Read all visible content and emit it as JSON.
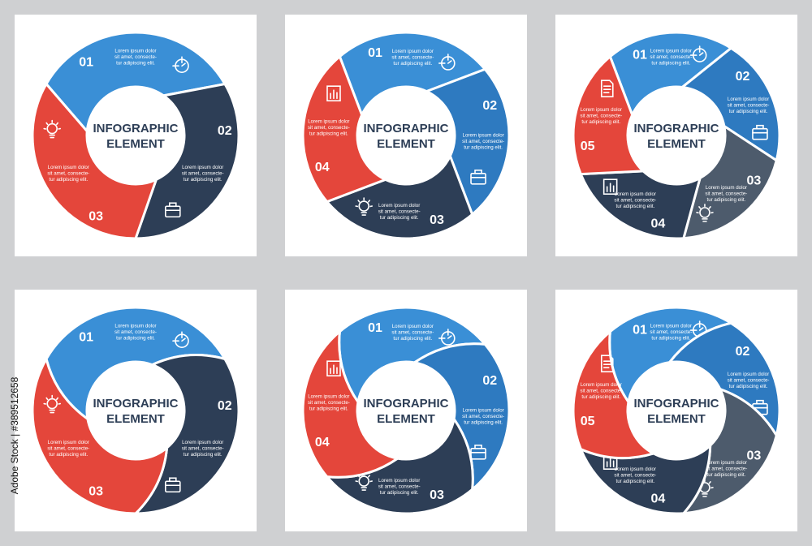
{
  "colors": {
    "blue_light": "#3a8fd6",
    "blue_mid": "#2e7ac0",
    "navy": "#2d3e56",
    "slate": "#4d5b6c",
    "red": "#e4463b",
    "background": "#cfd0d2"
  },
  "center_title": [
    "INFOGRAPHIC",
    "ELEMENT"
  ],
  "lorem": [
    "Lorem ipsum dolor",
    "sit amet, consecte-",
    "tur adipiscing elit."
  ],
  "watermark": "Adobe Stock | #389512658",
  "panels": [
    {
      "id": "p1",
      "segments": [
        {
          "num": "01",
          "color": "#3a8fd6",
          "icon": "target-icon"
        },
        {
          "num": "02",
          "color": "#2d3e56",
          "icon": "briefcase-icon"
        },
        {
          "num": "03",
          "color": "#e4463b",
          "icon": "lightbulb-icon"
        }
      ]
    },
    {
      "id": "p2",
      "segments": [
        {
          "num": "01",
          "color": "#3a8fd6",
          "icon": "target-icon"
        },
        {
          "num": "02",
          "color": "#2e7ac0",
          "icon": "briefcase-icon"
        },
        {
          "num": "03",
          "color": "#2d3e56",
          "icon": "lightbulb-icon"
        },
        {
          "num": "04",
          "color": "#e4463b",
          "icon": "bar-chart-icon"
        }
      ]
    },
    {
      "id": "p3",
      "segments": [
        {
          "num": "01",
          "color": "#3a8fd6",
          "icon": "target-icon"
        },
        {
          "num": "02",
          "color": "#2e7ac0",
          "icon": "briefcase-icon"
        },
        {
          "num": "03",
          "color": "#4d5b6c",
          "icon": "lightbulb-icon"
        },
        {
          "num": "04",
          "color": "#2d3e56",
          "icon": "bar-chart-icon"
        },
        {
          "num": "05",
          "color": "#e4463b",
          "icon": "document-icon"
        }
      ]
    },
    {
      "id": "p4",
      "segments": [
        {
          "num": "01",
          "color": "#3a8fd6",
          "icon": "target-icon"
        },
        {
          "num": "02",
          "color": "#2d3e56",
          "icon": "briefcase-icon"
        },
        {
          "num": "03",
          "color": "#e4463b",
          "icon": "lightbulb-icon"
        }
      ]
    },
    {
      "id": "p5",
      "segments": [
        {
          "num": "01",
          "color": "#3a8fd6",
          "icon": "target-icon"
        },
        {
          "num": "02",
          "color": "#2e7ac0",
          "icon": "briefcase-icon"
        },
        {
          "num": "03",
          "color": "#2d3e56",
          "icon": "lightbulb-icon"
        },
        {
          "num": "04",
          "color": "#e4463b",
          "icon": "bar-chart-icon"
        }
      ]
    },
    {
      "id": "p6",
      "segments": [
        {
          "num": "01",
          "color": "#3a8fd6",
          "icon": "target-icon"
        },
        {
          "num": "02",
          "color": "#2e7ac0",
          "icon": "briefcase-icon"
        },
        {
          "num": "03",
          "color": "#4d5b6c",
          "icon": "lightbulb-icon"
        },
        {
          "num": "04",
          "color": "#2d3e56",
          "icon": "bar-chart-icon"
        },
        {
          "num": "05",
          "color": "#e4463b",
          "icon": "document-icon"
        }
      ]
    }
  ]
}
